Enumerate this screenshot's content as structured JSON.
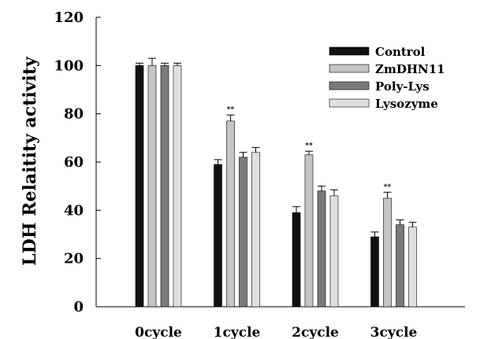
{
  "chart_data": {
    "type": "bar",
    "ylabel": "LDH Relaitity activity",
    "ylim": [
      0,
      120
    ],
    "yticks": [
      0,
      20,
      40,
      60,
      80,
      100,
      120
    ],
    "categories": [
      "0cycle",
      "1cycle",
      "2cycle",
      "3cycle"
    ],
    "series": [
      {
        "name": "Control",
        "color": "#111111",
        "values": [
          100,
          59,
          39,
          29
        ],
        "errors": [
          1,
          2,
          2.5,
          2
        ]
      },
      {
        "name": "ZmDHN11",
        "color": "#c4c4c4",
        "values": [
          100,
          77,
          63,
          45
        ],
        "errors": [
          3,
          2.5,
          1.5,
          2.5
        ]
      },
      {
        "name": "Poly-Lys",
        "color": "#7a7a7a",
        "values": [
          100,
          62,
          48,
          34
        ],
        "errors": [
          1,
          2,
          2,
          2
        ]
      },
      {
        "name": "Lysozyme",
        "color": "#e0e0e0",
        "values": [
          100,
          64,
          46,
          33
        ],
        "errors": [
          1,
          2,
          2.5,
          2
        ]
      }
    ],
    "annotations": [
      {
        "category": "1cycle",
        "series": "ZmDHN11",
        "text": "**"
      },
      {
        "category": "2cycle",
        "series": "ZmDHN11",
        "text": "**"
      },
      {
        "category": "3cycle",
        "series": "ZmDHN11",
        "text": "**"
      }
    ],
    "legend_position": "top-right",
    "grid": false
  }
}
